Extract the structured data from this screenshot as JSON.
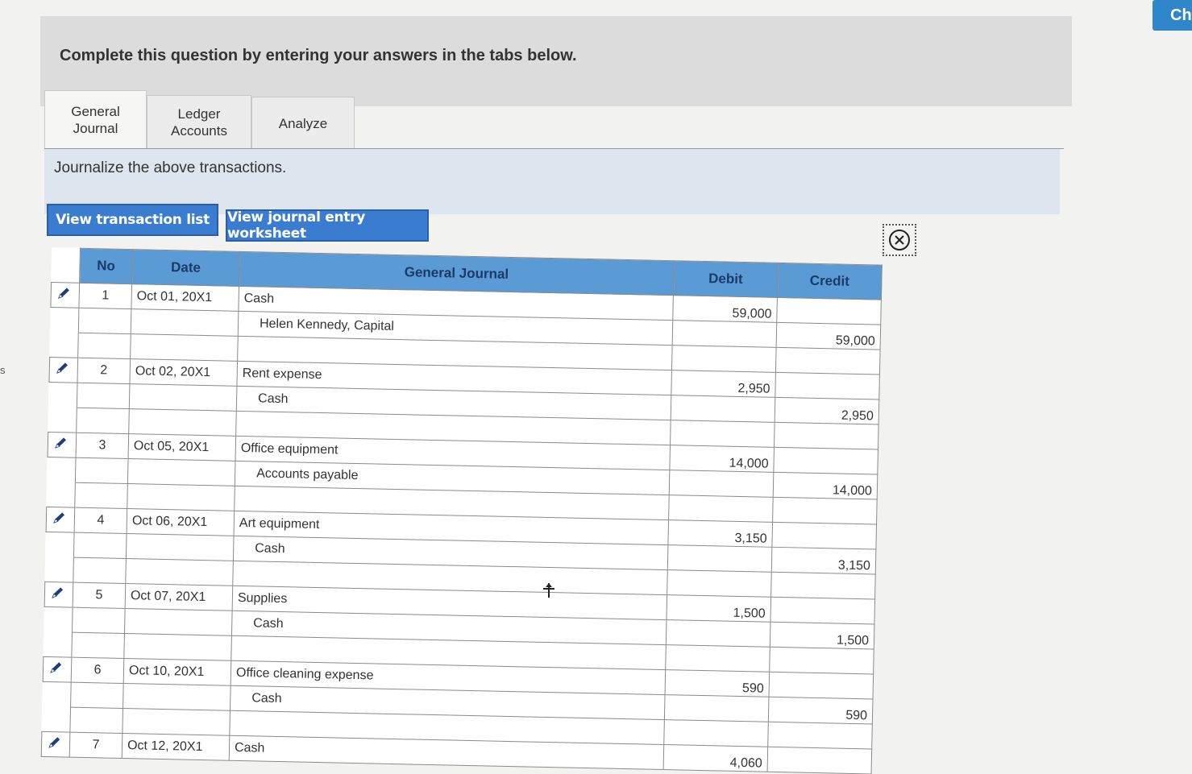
{
  "top_right_button": "Ch",
  "left_edge_text": "s",
  "header": {
    "question": "Complete this question by entering your answers in the tabs below."
  },
  "tabs": [
    {
      "label_line1": "General",
      "label_line2": "Journal"
    },
    {
      "label_line1": "Ledger",
      "label_line2": "Accounts"
    },
    {
      "label": "Analyze"
    }
  ],
  "instruction": "Journalize the above transactions.",
  "buttons": {
    "view_transaction_list": "View transaction list",
    "view_journal_worksheet": "View journal entry worksheet"
  },
  "journal": {
    "headers": {
      "no": "No",
      "date": "Date",
      "general_journal": "General Journal",
      "debit": "Debit",
      "credit": "Credit"
    },
    "entries": [
      {
        "no": "1",
        "date": "Oct 01, 20X1",
        "debit_account": "Cash",
        "debit": "59,000",
        "credit_account": "Helen Kennedy, Capital",
        "credit": "59,000"
      },
      {
        "no": "2",
        "date": "Oct 02, 20X1",
        "debit_account": "Rent expense",
        "debit": "2,950",
        "credit_account": "Cash",
        "credit": "2,950"
      },
      {
        "no": "3",
        "date": "Oct 05, 20X1",
        "debit_account": "Office equipment",
        "debit": "14,000",
        "credit_account": "Accounts payable",
        "credit": "14,000"
      },
      {
        "no": "4",
        "date": "Oct 06, 20X1",
        "debit_account": "Art equipment",
        "debit": "3,150",
        "credit_account": "Cash",
        "credit": "3,150"
      },
      {
        "no": "5",
        "date": "Oct 07, 20X1",
        "debit_account": "Supplies",
        "debit": "1,500",
        "credit_account": "Cash",
        "credit": "1,500"
      },
      {
        "no": "6",
        "date": "Oct 10, 20X1",
        "debit_account": "Office cleaning expense",
        "debit": "590",
        "credit_account": "Cash",
        "credit": "590"
      },
      {
        "no": "7",
        "date": "Oct 12, 20X1",
        "debit_account": "Cash",
        "debit": "4,060"
      }
    ]
  }
}
